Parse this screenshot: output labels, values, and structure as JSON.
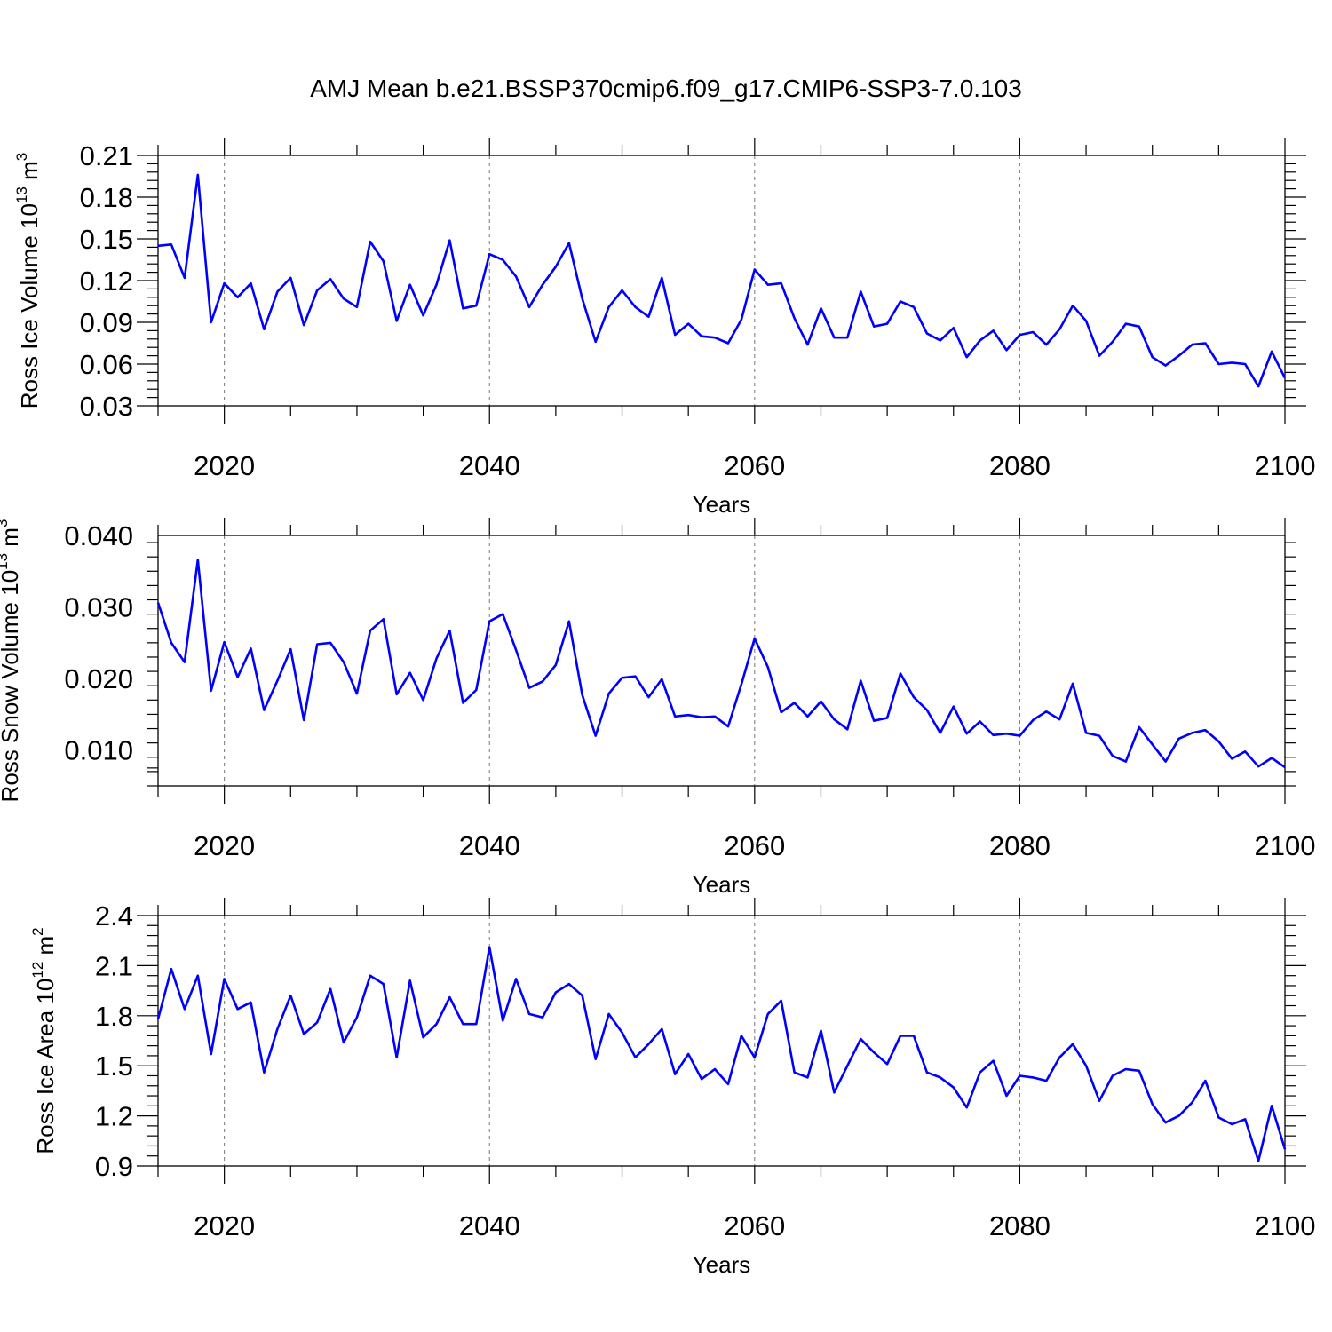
{
  "title": "AMJ Mean b.e21.BSSP370cmip6.f09_g17.CMIP6-SSP3-7.0.103",
  "chart_data": [
    {
      "type": "line",
      "ylabel": "Ross Ice Volume 10",
      "ylabel_exp": "13",
      "ylabel_unit": "m",
      "ylabel_unit_exp": "3",
      "xlabel": "Years",
      "xlim": [
        2015,
        2100
      ],
      "ylim": [
        0.03,
        0.21
      ],
      "xticks": [
        2020,
        2040,
        2060,
        2080,
        2100
      ],
      "xtick_labels": [
        "2020",
        "2040",
        "2060",
        "2080",
        "2100"
      ],
      "yticks": [
        0.03,
        0.06,
        0.09,
        0.12,
        0.15,
        0.18,
        0.21
      ],
      "ytick_labels": [
        "0.03",
        "0.06",
        "0.09",
        "0.12",
        "0.15",
        "0.18",
        "0.21"
      ],
      "line_color": "#0000ff",
      "x": [
        2015,
        2016,
        2017,
        2018,
        2019,
        2020,
        2021,
        2022,
        2023,
        2024,
        2025,
        2026,
        2027,
        2028,
        2029,
        2030,
        2031,
        2032,
        2033,
        2034,
        2035,
        2036,
        2037,
        2038,
        2039,
        2040,
        2041,
        2042,
        2043,
        2044,
        2045,
        2046,
        2047,
        2048,
        2049,
        2050,
        2051,
        2052,
        2053,
        2054,
        2055,
        2056,
        2057,
        2058,
        2059,
        2060,
        2061,
        2062,
        2063,
        2064,
        2065,
        2066,
        2067,
        2068,
        2069,
        2070,
        2071,
        2072,
        2073,
        2074,
        2075,
        2076,
        2077,
        2078,
        2079,
        2080,
        2081,
        2082,
        2083,
        2084,
        2085,
        2086,
        2087,
        2088,
        2089,
        2090,
        2091,
        2092,
        2093,
        2094,
        2095,
        2096,
        2097,
        2098,
        2099,
        2100
      ],
      "values": [
        0.145,
        0.146,
        0.122,
        0.196,
        0.09,
        0.118,
        0.108,
        0.118,
        0.085,
        0.112,
        0.122,
        0.088,
        0.113,
        0.121,
        0.107,
        0.101,
        0.148,
        0.134,
        0.091,
        0.117,
        0.095,
        0.117,
        0.149,
        0.1,
        0.102,
        0.139,
        0.135,
        0.123,
        0.101,
        0.117,
        0.13,
        0.147,
        0.107,
        0.076,
        0.101,
        0.113,
        0.101,
        0.094,
        0.122,
        0.081,
        0.089,
        0.08,
        0.079,
        0.075,
        0.092,
        0.128,
        0.117,
        0.118,
        0.093,
        0.074,
        0.1,
        0.079,
        0.079,
        0.112,
        0.087,
        0.089,
        0.105,
        0.101,
        0.082,
        0.077,
        0.086,
        0.065,
        0.077,
        0.084,
        0.07,
        0.081,
        0.083,
        0.074,
        0.085,
        0.102,
        0.091,
        0.066,
        0.076,
        0.089,
        0.087,
        0.065,
        0.059,
        0.066,
        0.074,
        0.075,
        0.06,
        0.061,
        0.06,
        0.044,
        0.069,
        0.05
      ]
    },
    {
      "type": "line",
      "ylabel": "Ross Snow Volume 10",
      "ylabel_exp": "13",
      "ylabel_unit": "m",
      "ylabel_unit_exp": "3",
      "xlabel": "Years",
      "xlim": [
        2015,
        2100
      ],
      "ylim": [
        0.005,
        0.04
      ],
      "xticks": [
        2020,
        2040,
        2060,
        2080,
        2100
      ],
      "xtick_labels": [
        "2020",
        "2040",
        "2060",
        "2080",
        "2100"
      ],
      "yticks": [
        0.01,
        0.02,
        0.03,
        0.04
      ],
      "ytick_labels": [
        "0.010",
        "0.020",
        "0.030",
        "0.040"
      ],
      "line_color": "#0000ff",
      "x": [
        2015,
        2016,
        2017,
        2018,
        2019,
        2020,
        2021,
        2022,
        2023,
        2024,
        2025,
        2026,
        2027,
        2028,
        2029,
        2030,
        2031,
        2032,
        2033,
        2034,
        2035,
        2036,
        2037,
        2038,
        2039,
        2040,
        2041,
        2042,
        2043,
        2044,
        2045,
        2046,
        2047,
        2048,
        2049,
        2050,
        2051,
        2052,
        2053,
        2054,
        2055,
        2056,
        2057,
        2058,
        2059,
        2060,
        2061,
        2062,
        2063,
        2064,
        2065,
        2066,
        2067,
        2068,
        2069,
        2070,
        2071,
        2072,
        2073,
        2074,
        2075,
        2076,
        2077,
        2078,
        2079,
        2080,
        2081,
        2082,
        2083,
        2084,
        2085,
        2086,
        2087,
        2088,
        2089,
        2090,
        2091,
        2092,
        2093,
        2094,
        2095,
        2096,
        2097,
        2098,
        2099,
        2100
      ],
      "values": [
        0.0306,
        0.025,
        0.0223,
        0.0366,
        0.0183,
        0.0251,
        0.0202,
        0.0242,
        0.0156,
        0.0197,
        0.0241,
        0.0142,
        0.0248,
        0.025,
        0.0223,
        0.0179,
        0.0267,
        0.0283,
        0.0178,
        0.0208,
        0.017,
        0.0228,
        0.0267,
        0.0166,
        0.0184,
        0.028,
        0.029,
        0.024,
        0.0187,
        0.0196,
        0.0219,
        0.028,
        0.0177,
        0.012,
        0.0179,
        0.0201,
        0.0203,
        0.0174,
        0.0199,
        0.0147,
        0.0149,
        0.0146,
        0.0147,
        0.0133,
        0.0192,
        0.0256,
        0.0216,
        0.0153,
        0.0166,
        0.0147,
        0.0168,
        0.0143,
        0.0129,
        0.0197,
        0.0141,
        0.0145,
        0.0207,
        0.0174,
        0.0156,
        0.0124,
        0.0161,
        0.0123,
        0.014,
        0.0121,
        0.0123,
        0.012,
        0.0142,
        0.0154,
        0.0143,
        0.0193,
        0.0124,
        0.012,
        0.0092,
        0.0084,
        0.0132,
        0.0108,
        0.0084,
        0.0116,
        0.0124,
        0.0128,
        0.0112,
        0.0088,
        0.0098,
        0.0077,
        0.0089,
        0.0076
      ]
    },
    {
      "type": "line",
      "ylabel": "Ross Ice Area 10",
      "ylabel_exp": "12",
      "ylabel_unit": "m",
      "ylabel_unit_exp": "2",
      "xlabel": "Years",
      "xlim": [
        2015,
        2100
      ],
      "ylim": [
        0.9,
        2.4
      ],
      "xticks": [
        2020,
        2040,
        2060,
        2080,
        2100
      ],
      "xtick_labels": [
        "2020",
        "2040",
        "2060",
        "2080",
        "2100"
      ],
      "yticks": [
        0.9,
        1.2,
        1.5,
        1.8,
        2.1,
        2.4
      ],
      "ytick_labels": [
        "0.9",
        "1.2",
        "1.5",
        "1.8",
        "2.1",
        "2.4"
      ],
      "line_color": "#0000ff",
      "x": [
        2015,
        2016,
        2017,
        2018,
        2019,
        2020,
        2021,
        2022,
        2023,
        2024,
        2025,
        2026,
        2027,
        2028,
        2029,
        2030,
        2031,
        2032,
        2033,
        2034,
        2035,
        2036,
        2037,
        2038,
        2039,
        2040,
        2041,
        2042,
        2043,
        2044,
        2045,
        2046,
        2047,
        2048,
        2049,
        2050,
        2051,
        2052,
        2053,
        2054,
        2055,
        2056,
        2057,
        2058,
        2059,
        2060,
        2061,
        2062,
        2063,
        2064,
        2065,
        2066,
        2067,
        2068,
        2069,
        2070,
        2071,
        2072,
        2073,
        2074,
        2075,
        2076,
        2077,
        2078,
        2079,
        2080,
        2081,
        2082,
        2083,
        2084,
        2085,
        2086,
        2087,
        2088,
        2089,
        2090,
        2091,
        2092,
        2093,
        2094,
        2095,
        2096,
        2097,
        2098,
        2099,
        2100
      ],
      "values": [
        1.78,
        2.08,
        1.84,
        2.04,
        1.57,
        2.02,
        1.84,
        1.88,
        1.46,
        1.72,
        1.92,
        1.69,
        1.76,
        1.96,
        1.64,
        1.79,
        2.04,
        1.99,
        1.55,
        2.01,
        1.67,
        1.75,
        1.91,
        1.75,
        1.75,
        2.21,
        1.77,
        2.02,
        1.81,
        1.79,
        1.94,
        1.99,
        1.92,
        1.54,
        1.81,
        1.7,
        1.55,
        1.63,
        1.72,
        1.45,
        1.57,
        1.42,
        1.48,
        1.39,
        1.68,
        1.55,
        1.81,
        1.89,
        1.46,
        1.43,
        1.71,
        1.34,
        1.5,
        1.66,
        1.58,
        1.51,
        1.68,
        1.68,
        1.46,
        1.43,
        1.37,
        1.25,
        1.46,
        1.53,
        1.32,
        1.44,
        1.43,
        1.41,
        1.55,
        1.63,
        1.5,
        1.29,
        1.44,
        1.48,
        1.47,
        1.27,
        1.16,
        1.2,
        1.28,
        1.41,
        1.19,
        1.15,
        1.18,
        0.93,
        1.26,
        1.0
      ]
    }
  ]
}
